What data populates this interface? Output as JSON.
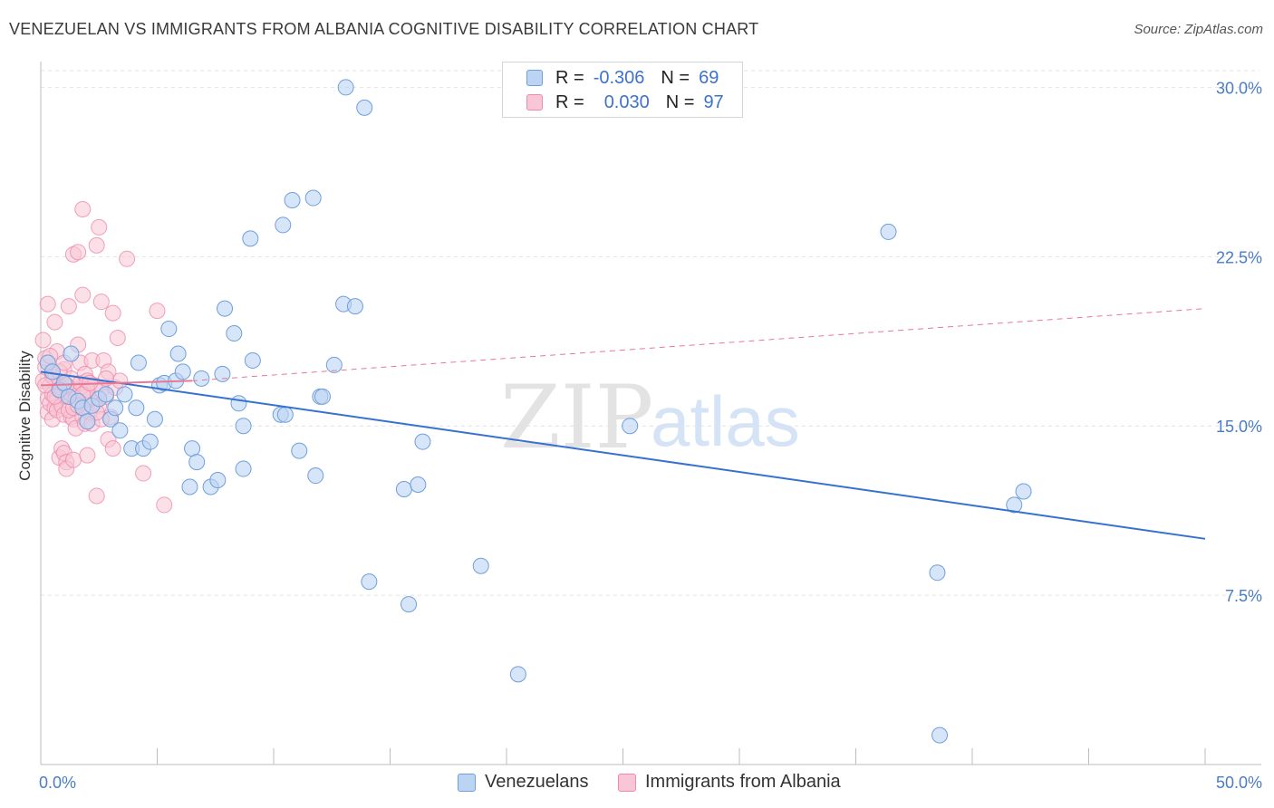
{
  "header": {
    "title": "VENEZUELAN VS IMMIGRANTS FROM ALBANIA COGNITIVE DISABILITY CORRELATION CHART",
    "source": "Source: ZipAtlas.com"
  },
  "watermark": {
    "zip": "ZIP",
    "atlas": "atlas"
  },
  "legend": {
    "rows": [
      {
        "r_label": "R =",
        "r_value": "-0.306",
        "n_label": "N =",
        "n_value": "69"
      },
      {
        "r_label": "R =",
        "r_value": "0.030",
        "n_label": "N =",
        "n_value": "97"
      }
    ]
  },
  "colors": {
    "venezuelans": "#6f9fdc",
    "venezuelans_fill": "#bcd4f3",
    "albania": "#ee8aaa",
    "albania_fill": "#f8c6d6",
    "trend_blue": "#3572d0",
    "trend_pink": "#e87896",
    "grid": "#e2e2e2",
    "tick_label": "#4a7cc7"
  },
  "chart_data": {
    "type": "scatter",
    "title": "VENEZUELAN VS IMMIGRANTS FROM ALBANIA COGNITIVE DISABILITY CORRELATION CHART",
    "xlabel": "",
    "ylabel": "Cognitive Disability",
    "xlim": [
      0,
      50
    ],
    "ylim": [
      0,
      30.9
    ],
    "x_tick_labels": [
      "0.0%",
      "50.0%"
    ],
    "y_ticks": [
      7.5,
      15.0,
      22.5,
      30.0
    ],
    "y_tick_labels": [
      "7.5%",
      "15.0%",
      "22.5%",
      "30.0%"
    ],
    "grid": "horizontal dashed",
    "legend_position": "bottom-center",
    "series": [
      {
        "name": "Venezuelans",
        "r": -0.306,
        "n": 69,
        "trend": {
          "x0": 0,
          "y0": 17.4,
          "x1": 50,
          "y1": 10.0
        },
        "points": [
          [
            0.3,
            17.8
          ],
          [
            0.5,
            17.4
          ],
          [
            0.8,
            16.6
          ],
          [
            1.0,
            16.9
          ],
          [
            1.2,
            16.3
          ],
          [
            1.3,
            18.2
          ],
          [
            1.6,
            16.1
          ],
          [
            1.8,
            15.8
          ],
          [
            2.0,
            15.2
          ],
          [
            2.2,
            15.9
          ],
          [
            2.5,
            16.2
          ],
          [
            2.8,
            16.4
          ],
          [
            3.0,
            15.3
          ],
          [
            3.2,
            15.8
          ],
          [
            3.4,
            14.8
          ],
          [
            3.6,
            16.4
          ],
          [
            3.9,
            14.0
          ],
          [
            4.1,
            15.8
          ],
          [
            4.2,
            17.8
          ],
          [
            4.4,
            14.0
          ],
          [
            4.7,
            14.3
          ],
          [
            4.9,
            15.3
          ],
          [
            5.1,
            16.8
          ],
          [
            5.3,
            16.9
          ],
          [
            5.5,
            19.3
          ],
          [
            5.8,
            17.0
          ],
          [
            5.9,
            18.2
          ],
          [
            6.1,
            17.4
          ],
          [
            6.5,
            14.0
          ],
          [
            6.7,
            13.4
          ],
          [
            6.9,
            17.1
          ],
          [
            6.4,
            12.3
          ],
          [
            7.3,
            12.3
          ],
          [
            7.6,
            12.6
          ],
          [
            7.8,
            17.3
          ],
          [
            7.9,
            20.2
          ],
          [
            8.3,
            19.1
          ],
          [
            8.5,
            16.0
          ],
          [
            8.7,
            15.0
          ],
          [
            8.7,
            13.1
          ],
          [
            9.0,
            23.3
          ],
          [
            9.1,
            17.9
          ],
          [
            10.3,
            15.5
          ],
          [
            10.4,
            23.9
          ],
          [
            10.8,
            25.0
          ],
          [
            11.1,
            13.9
          ],
          [
            11.7,
            25.1
          ],
          [
            11.8,
            12.8
          ],
          [
            12.0,
            16.3
          ],
          [
            12.6,
            17.7
          ],
          [
            13.1,
            30.0
          ],
          [
            13.0,
            20.4
          ],
          [
            13.5,
            20.3
          ],
          [
            13.9,
            29.1
          ],
          [
            14.1,
            8.1
          ],
          [
            15.6,
            12.2
          ],
          [
            15.8,
            7.1
          ],
          [
            16.2,
            12.4
          ],
          [
            16.4,
            14.3
          ],
          [
            18.9,
            8.8
          ],
          [
            20.5,
            4.0
          ],
          [
            25.3,
            15.0
          ],
          [
            36.4,
            23.6
          ],
          [
            38.5,
            8.5
          ],
          [
            38.6,
            1.3
          ],
          [
            41.8,
            11.5
          ],
          [
            42.2,
            12.1
          ],
          [
            12.1,
            16.3
          ],
          [
            10.5,
            15.5
          ]
        ]
      },
      {
        "name": "Immigrants from Albania",
        "r": 0.03,
        "n": 97,
        "trend_solid": {
          "x0": 0,
          "y0": 16.8,
          "x1": 6.5,
          "y1": 17.0
        },
        "trend_dashed": {
          "x0": 6.5,
          "y0": 17.0,
          "x1": 50,
          "y1": 20.2
        },
        "points": [
          [
            0.1,
            17.0
          ],
          [
            0.1,
            18.8
          ],
          [
            0.2,
            17.6
          ],
          [
            0.2,
            18.0
          ],
          [
            0.3,
            20.4
          ],
          [
            0.3,
            16.2
          ],
          [
            0.3,
            15.6
          ],
          [
            0.4,
            16.8
          ],
          [
            0.4,
            16.0
          ],
          [
            0.5,
            15.3
          ],
          [
            0.5,
            17.3
          ],
          [
            0.5,
            16.4
          ],
          [
            0.6,
            19.6
          ],
          [
            0.6,
            15.8
          ],
          [
            0.6,
            17.1
          ],
          [
            0.7,
            18.3
          ],
          [
            0.7,
            16.2
          ],
          [
            0.7,
            15.7
          ],
          [
            0.8,
            16.8
          ],
          [
            0.8,
            13.6
          ],
          [
            0.9,
            16.5
          ],
          [
            0.9,
            15.9
          ],
          [
            0.9,
            14.0
          ],
          [
            1.0,
            15.5
          ],
          [
            1.0,
            13.8
          ],
          [
            1.0,
            17.5
          ],
          [
            1.1,
            13.4
          ],
          [
            1.1,
            13.1
          ],
          [
            1.1,
            16.3
          ],
          [
            1.2,
            20.3
          ],
          [
            1.2,
            16.7
          ],
          [
            1.3,
            15.4
          ],
          [
            1.3,
            16.4
          ],
          [
            1.3,
            17.1
          ],
          [
            1.4,
            22.6
          ],
          [
            1.4,
            13.5
          ],
          [
            1.4,
            15.3
          ],
          [
            1.5,
            16.6
          ],
          [
            1.5,
            14.9
          ],
          [
            1.6,
            22.7
          ],
          [
            1.6,
            16.1
          ],
          [
            1.6,
            18.6
          ],
          [
            1.7,
            17.8
          ],
          [
            1.7,
            16.9
          ],
          [
            1.7,
            16.0
          ],
          [
            1.8,
            20.8
          ],
          [
            1.8,
            24.6
          ],
          [
            1.8,
            15.4
          ],
          [
            1.9,
            17.3
          ],
          [
            1.9,
            16.5
          ],
          [
            1.9,
            15.1
          ],
          [
            2.0,
            17.0
          ],
          [
            2.0,
            13.7
          ],
          [
            2.1,
            16.2
          ],
          [
            2.1,
            15.6
          ],
          [
            2.2,
            17.9
          ],
          [
            2.2,
            15.1
          ],
          [
            2.3,
            16.8
          ],
          [
            2.3,
            16.0
          ],
          [
            2.4,
            23.0
          ],
          [
            2.4,
            11.9
          ],
          [
            2.5,
            23.8
          ],
          [
            2.5,
            15.9
          ],
          [
            2.6,
            16.6
          ],
          [
            2.6,
            20.5
          ],
          [
            2.7,
            17.9
          ],
          [
            2.8,
            16.3
          ],
          [
            2.9,
            17.4
          ],
          [
            2.9,
            14.4
          ],
          [
            3.0,
            15.4
          ],
          [
            3.1,
            20.0
          ],
          [
            3.1,
            14.0
          ],
          [
            3.2,
            16.7
          ],
          [
            3.3,
            18.9
          ],
          [
            3.4,
            17.0
          ],
          [
            3.7,
            22.4
          ],
          [
            4.4,
            12.9
          ],
          [
            5.0,
            20.1
          ],
          [
            5.3,
            11.5
          ],
          [
            0.5,
            17.2
          ],
          [
            0.9,
            16.7
          ],
          [
            1.2,
            15.7
          ],
          [
            1.5,
            16.2
          ],
          [
            2.0,
            16.6
          ],
          [
            2.6,
            15.3
          ],
          [
            0.2,
            16.8
          ],
          [
            0.4,
            18.1
          ],
          [
            0.8,
            17.4
          ],
          [
            1.1,
            16.8
          ],
          [
            1.4,
            15.8
          ],
          [
            1.8,
            16.4
          ],
          [
            2.1,
            16.9
          ],
          [
            2.4,
            15.6
          ],
          [
            2.8,
            17.1
          ],
          [
            0.6,
            16.3
          ],
          [
            1.0,
            17.8
          ],
          [
            1.6,
            15.9
          ]
        ]
      }
    ]
  },
  "bottom_legend": {
    "items": [
      {
        "label": "Venezuelans"
      },
      {
        "label": "Immigrants from Albania"
      }
    ]
  }
}
